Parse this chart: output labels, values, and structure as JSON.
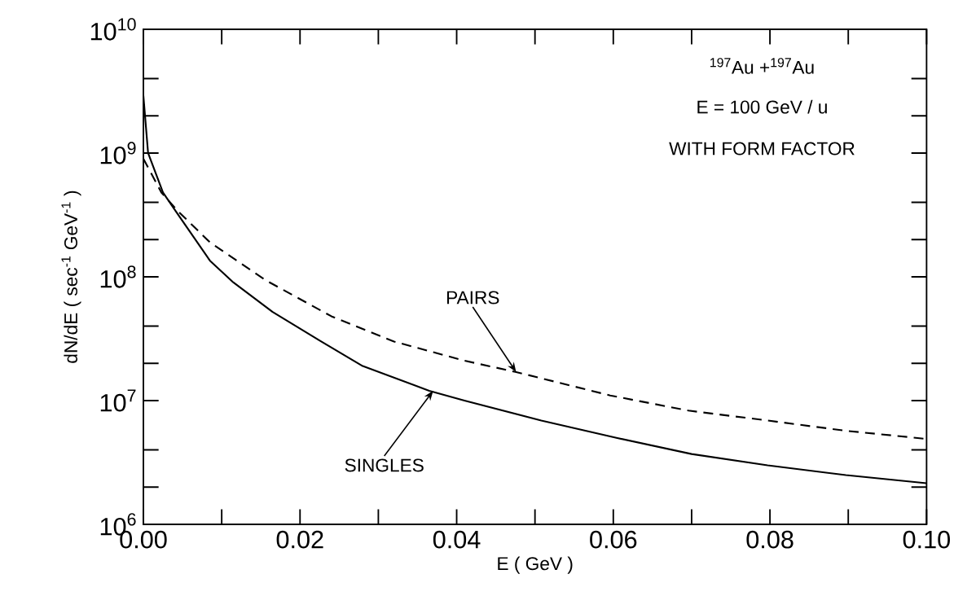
{
  "chart_data": {
    "type": "line",
    "xlabel": "E ( GeV )",
    "ylabel": "dN/dE ( sec$^{-1}$ GeV$^{-1}$ )",
    "log": "y",
    "xlim": [
      0,
      0.1
    ],
    "ylim": [
      1000000,
      10000000000
    ],
    "xticks": [
      {
        "value": 0,
        "label": "0.00"
      },
      {
        "value": 0.02,
        "label": "0.02"
      },
      {
        "value": 0.04,
        "label": "0.04"
      },
      {
        "value": 0.06,
        "label": "0.06"
      },
      {
        "value": 0.08,
        "label": "0.08"
      },
      {
        "value": 0.1,
        "label": "0.10"
      }
    ],
    "yticks": [
      {
        "value": 1000000,
        "label": "10$^{6}$"
      },
      {
        "value": 10000000,
        "label": "10$^{7}$"
      },
      {
        "value": 100000000,
        "label": "10$^{8}$"
      },
      {
        "value": 1000000000,
        "label": "10$^{9}$"
      },
      {
        "value": 10000000000,
        "label": "10$^{10}$"
      }
    ],
    "grid": false,
    "series": [
      {
        "color": "#000000",
        "line_style": "solid",
        "x": [
          0,
          0.0006,
          0.0025,
          0.0044,
          0.0085,
          0.0115,
          0.0165,
          0.0227,
          0.028,
          0.0365,
          0.041,
          0.0508,
          0.0604,
          0.07,
          0.0797,
          0.0897,
          0.1
        ],
        "values": [
          2900000000,
          1000000000,
          480000000,
          320000000,
          135000000,
          90000000,
          52000000,
          30000000,
          19000000,
          12000000,
          10000000,
          6900000,
          5000000,
          3700000,
          3000000,
          2500000,
          2150000
        ]
      },
      {
        "color": "#000000",
        "line_style": "dashed",
        "x": [
          0,
          0.0023,
          0.0044,
          0.0085,
          0.0156,
          0.024,
          0.032,
          0.041,
          0.0476,
          0.0596,
          0.0696,
          0.0797,
          0.0897,
          0.1
        ],
        "values": [
          900000000,
          480000000,
          340000000,
          190000000,
          94000000,
          48000000,
          30000000,
          21000000,
          17000000,
          11000000,
          8300000,
          6900000,
          5700000,
          4900000
        ]
      }
    ],
    "annotations": [
      "$^{197}$Au +$^{197}$Au",
      "E = 100 GeV / u",
      "WITH FORM FACTOR",
      {
        "text": "PAIRS",
        "x": 0.0476,
        "y": 17000000
      },
      {
        "text": "SINGLES",
        "x": 0.037,
        "y": 12000000
      }
    ]
  }
}
